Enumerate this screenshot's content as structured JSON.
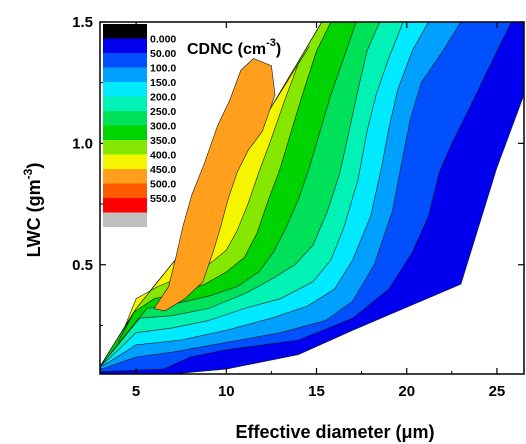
{
  "chart_data": {
    "type": "heatmap",
    "title": "",
    "xlabel": "Effective diameter (μm)",
    "ylabel": "LWC (gm-3)",
    "ylabel_base": "LWC (gm",
    "ylabel_sup": "-3",
    "ylabel_tail": ")",
    "xlim": [
      3,
      26.5
    ],
    "ylim": [
      0.05,
      1.5
    ],
    "x_ticks": [
      5,
      10,
      15,
      20,
      25
    ],
    "y_ticks": [
      0.5,
      1.0,
      1.5
    ],
    "y_tick_labels": [
      "0.5",
      "1.0",
      "1.5"
    ],
    "colorbar": {
      "title": "CDNC (cm-3)",
      "title_base": "CDNC (cm",
      "title_sup": "-3",
      "title_tail": ")",
      "placement": "top-left inset",
      "levels": [
        "0.000",
        "50.00",
        "100.0",
        "150.0",
        "200.0",
        "250.0",
        "300.0",
        "350.0",
        "400.0",
        "450.0",
        "500.0",
        "550.0",
        ""
      ],
      "colors": [
        "#000000",
        "#0000ee",
        "#0050ff",
        "#00a0ff",
        "#00eaff",
        "#00f2b4",
        "#00e15a",
        "#00d400",
        "#86e800",
        "#f5f500",
        "#ff9f1c",
        "#ff5a00",
        "#ff0000",
        "#c0c0c0"
      ]
    },
    "contours": [
      {
        "level_min": 0,
        "level_max": 50,
        "color": "#0000ee",
        "points": [
          [
            3.0,
            0.08
          ],
          [
            5.0,
            0.32
          ],
          [
            7.5,
            0.55
          ],
          [
            10.0,
            0.84
          ],
          [
            12.5,
            1.15
          ],
          [
            15.3,
            1.5
          ],
          [
            26.5,
            1.5
          ],
          [
            26.5,
            1.2
          ],
          [
            25.0,
            0.9
          ],
          [
            23.0,
            0.42
          ],
          [
            17.0,
            0.23
          ],
          [
            14.0,
            0.13
          ],
          [
            10.0,
            0.07
          ],
          [
            7.0,
            0.05
          ],
          [
            3.0,
            0.05
          ]
        ]
      },
      {
        "level_min": 50,
        "level_max": 100,
        "color": "#0050ff",
        "points": [
          [
            3.0,
            0.08
          ],
          [
            5.0,
            0.32
          ],
          [
            7.5,
            0.55
          ],
          [
            10.0,
            0.84
          ],
          [
            12.5,
            1.15
          ],
          [
            15.3,
            1.5
          ],
          [
            25.8,
            1.5
          ],
          [
            25.0,
            1.38
          ],
          [
            23.5,
            1.15
          ],
          [
            22.5,
            1.0
          ],
          [
            21.8,
            0.88
          ],
          [
            21.2,
            0.7
          ],
          [
            20.3,
            0.55
          ],
          [
            19.0,
            0.4
          ],
          [
            17.0,
            0.28
          ],
          [
            14.0,
            0.19
          ],
          [
            10.0,
            0.15
          ],
          [
            8.0,
            0.12
          ],
          [
            6.5,
            0.07
          ],
          [
            3.0,
            0.06
          ]
        ]
      },
      {
        "level_min": 100,
        "level_max": 150,
        "color": "#00a0ff",
        "points": [
          [
            3.0,
            0.08
          ],
          [
            5.0,
            0.32
          ],
          [
            7.5,
            0.55
          ],
          [
            10.0,
            0.84
          ],
          [
            12.5,
            1.15
          ],
          [
            15.3,
            1.5
          ],
          [
            23.0,
            1.5
          ],
          [
            22.0,
            1.38
          ],
          [
            20.8,
            1.25
          ],
          [
            20.2,
            1.1
          ],
          [
            19.8,
            0.95
          ],
          [
            19.2,
            0.72
          ],
          [
            18.2,
            0.5
          ],
          [
            17.0,
            0.35
          ],
          [
            15.5,
            0.27
          ],
          [
            13.0,
            0.22
          ],
          [
            10.0,
            0.18
          ],
          [
            7.0,
            0.14
          ],
          [
            5.0,
            0.12
          ],
          [
            3.1,
            0.07
          ]
        ]
      },
      {
        "level_min": 150,
        "level_max": 200,
        "color": "#00eaff",
        "points": [
          [
            3.0,
            0.08
          ],
          [
            5.0,
            0.32
          ],
          [
            7.5,
            0.55
          ],
          [
            10.0,
            0.84
          ],
          [
            12.5,
            1.15
          ],
          [
            15.3,
            1.5
          ],
          [
            21.2,
            1.5
          ],
          [
            20.3,
            1.38
          ],
          [
            19.5,
            1.22
          ],
          [
            19.0,
            1.06
          ],
          [
            18.6,
            0.9
          ],
          [
            18.0,
            0.7
          ],
          [
            17.0,
            0.52
          ],
          [
            16.0,
            0.4
          ],
          [
            14.5,
            0.33
          ],
          [
            12.5,
            0.28
          ],
          [
            10.0,
            0.23
          ],
          [
            7.5,
            0.19
          ],
          [
            5.0,
            0.17
          ],
          [
            3.3,
            0.09
          ]
        ]
      },
      {
        "level_min": 200,
        "level_max": 250,
        "color": "#00f2b4",
        "points": [
          [
            3.0,
            0.08
          ],
          [
            5.0,
            0.32
          ],
          [
            7.5,
            0.55
          ],
          [
            10.0,
            0.84
          ],
          [
            12.5,
            1.15
          ],
          [
            15.3,
            1.5
          ],
          [
            19.8,
            1.5
          ],
          [
            19.0,
            1.35
          ],
          [
            18.3,
            1.2
          ],
          [
            17.8,
            1.05
          ],
          [
            17.3,
            0.85
          ],
          [
            16.5,
            0.65
          ],
          [
            15.8,
            0.52
          ],
          [
            14.8,
            0.43
          ],
          [
            13.0,
            0.36
          ],
          [
            11.0,
            0.32
          ],
          [
            9.0,
            0.27
          ],
          [
            7.0,
            0.24
          ],
          [
            5.0,
            0.22
          ],
          [
            3.6,
            0.12
          ]
        ]
      },
      {
        "level_min": 250,
        "level_max": 300,
        "color": "#00e15a",
        "points": [
          [
            3.0,
            0.08
          ],
          [
            5.0,
            0.32
          ],
          [
            7.5,
            0.55
          ],
          [
            10.0,
            0.84
          ],
          [
            12.5,
            1.15
          ],
          [
            15.3,
            1.5
          ],
          [
            18.5,
            1.5
          ],
          [
            17.8,
            1.38
          ],
          [
            17.3,
            1.22
          ],
          [
            16.8,
            1.05
          ],
          [
            16.3,
            0.88
          ],
          [
            15.6,
            0.72
          ],
          [
            14.8,
            0.58
          ],
          [
            13.8,
            0.5
          ],
          [
            12.5,
            0.44
          ],
          [
            11.0,
            0.38
          ],
          [
            9.0,
            0.32
          ],
          [
            7.0,
            0.29
          ],
          [
            5.2,
            0.28
          ],
          [
            4.0,
            0.17
          ]
        ]
      },
      {
        "level_min": 300,
        "level_max": 350,
        "color": "#00d400",
        "points": [
          [
            3.0,
            0.08
          ],
          [
            5.0,
            0.32
          ],
          [
            7.5,
            0.55
          ],
          [
            10.0,
            0.84
          ],
          [
            12.5,
            1.15
          ],
          [
            15.3,
            1.5
          ],
          [
            17.2,
            1.5
          ],
          [
            16.5,
            1.35
          ],
          [
            15.8,
            1.2
          ],
          [
            15.2,
            1.05
          ],
          [
            14.6,
            0.9
          ],
          [
            14.0,
            0.77
          ],
          [
            13.3,
            0.65
          ],
          [
            12.6,
            0.55
          ],
          [
            11.8,
            0.47
          ],
          [
            10.6,
            0.41
          ],
          [
            9.0,
            0.37
          ],
          [
            7.2,
            0.34
          ],
          [
            5.6,
            0.32
          ],
          [
            4.5,
            0.22
          ]
        ]
      },
      {
        "level_min": 350,
        "level_max": 400,
        "color": "#86e800",
        "points": [
          [
            4.0,
            0.18
          ],
          [
            5.0,
            0.32
          ],
          [
            7.5,
            0.55
          ],
          [
            10.0,
            0.84
          ],
          [
            12.5,
            1.15
          ],
          [
            15.3,
            1.5
          ],
          [
            15.8,
            1.5
          ],
          [
            15.0,
            1.38
          ],
          [
            14.3,
            1.22
          ],
          [
            13.6,
            1.05
          ],
          [
            13.0,
            0.9
          ],
          [
            12.3,
            0.76
          ],
          [
            11.7,
            0.63
          ],
          [
            11.0,
            0.53
          ],
          [
            10.0,
            0.47
          ],
          [
            8.8,
            0.42
          ],
          [
            7.3,
            0.38
          ],
          [
            6.0,
            0.36
          ],
          [
            4.8,
            0.3
          ]
        ]
      },
      {
        "level_min": 400,
        "level_max": 450,
        "color": "#f5f500",
        "points": [
          [
            4.4,
            0.25
          ],
          [
            5.0,
            0.32
          ],
          [
            7.5,
            0.55
          ],
          [
            10.0,
            0.84
          ],
          [
            12.5,
            1.15
          ],
          [
            14.6,
            1.4
          ],
          [
            14.0,
            1.33
          ],
          [
            13.2,
            1.17
          ],
          [
            12.5,
            1.02
          ],
          [
            11.8,
            0.88
          ],
          [
            11.2,
            0.75
          ],
          [
            10.6,
            0.64
          ],
          [
            10.0,
            0.56
          ],
          [
            9.0,
            0.5
          ],
          [
            7.5,
            0.45
          ],
          [
            6.2,
            0.41
          ],
          [
            5.0,
            0.36
          ]
        ]
      },
      {
        "level_min": 450,
        "level_max": 500,
        "color": "#ff9f1c",
        "points": [
          [
            6.0,
            0.32
          ],
          [
            6.8,
            0.41
          ],
          [
            7.2,
            0.53
          ],
          [
            7.6,
            0.66
          ],
          [
            8.1,
            0.79
          ],
          [
            8.8,
            0.92
          ],
          [
            9.5,
            1.07
          ],
          [
            10.2,
            1.18
          ],
          [
            10.8,
            1.3
          ],
          [
            11.5,
            1.35
          ],
          [
            12.5,
            1.32
          ],
          [
            12.7,
            1.2
          ],
          [
            12.0,
            1.05
          ],
          [
            11.2,
            0.97
          ],
          [
            10.6,
            0.88
          ],
          [
            10.1,
            0.77
          ],
          [
            9.7,
            0.66
          ],
          [
            9.3,
            0.56
          ],
          [
            8.7,
            0.43
          ],
          [
            7.7,
            0.36
          ],
          [
            6.6,
            0.31
          ]
        ]
      }
    ]
  }
}
